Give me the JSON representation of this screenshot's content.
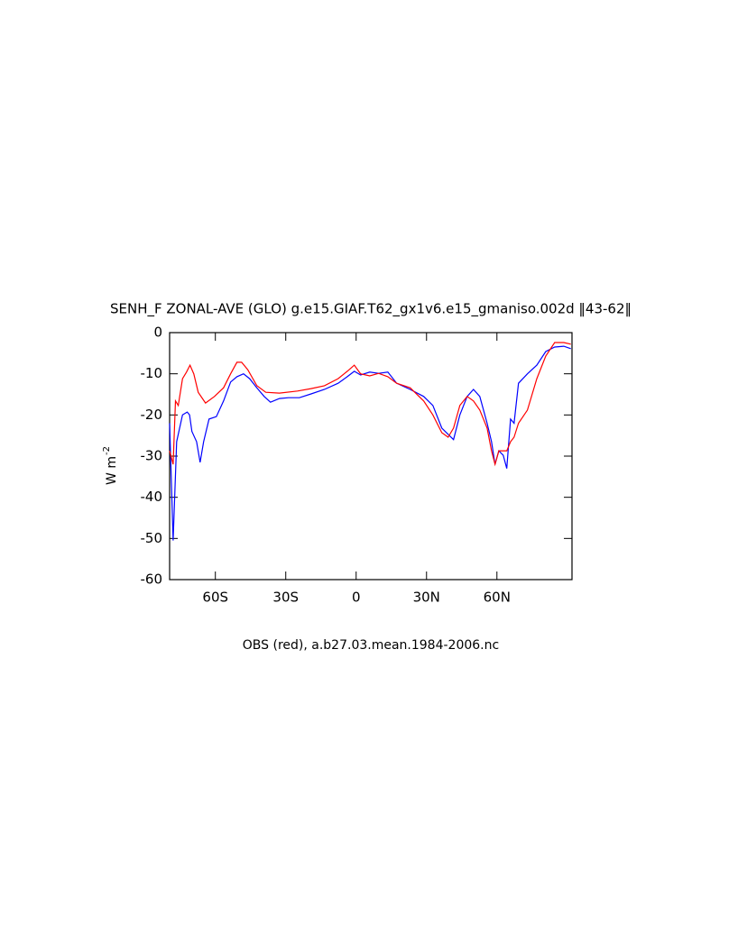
{
  "chart_data": {
    "type": "line",
    "title": "SENH_F ZONAL-AVE (GLO) g.e15.GIAF.T62_gx1v6.e15_gmaniso.002d ‖43-62‖",
    "xlabel": "OBS (red), a.b27.03.mean.1984-2006.nc",
    "ylabel": "W m",
    "ylabel_superscript": "-2",
    "xlim": [
      -79.5,
      92
    ],
    "ylim": [
      -60,
      0
    ],
    "xticks": [
      {
        "value": -60,
        "label": "60S"
      },
      {
        "value": -30,
        "label": "30S"
      },
      0,
      {
        "value": 30,
        "label": "30N"
      },
      {
        "value": 60,
        "label": "60N"
      }
    ],
    "yticks": [
      0,
      -10,
      -20,
      -30,
      -40,
      -50,
      -60
    ],
    "series": [
      {
        "color": "#0000ff",
        "x": [
          -79.5,
          -78,
          -76.5,
          -74,
          -72,
          -71,
          -70,
          -68,
          -66.5,
          -65,
          -62.7,
          -59.6,
          -56.5,
          -53.5,
          -50.8,
          -48,
          -45.4,
          -42.3,
          -39.2,
          -36.5,
          -32.7,
          -28.8,
          -24.2,
          -19.2,
          -13.5,
          -7.7,
          -3.8,
          -0.8,
          1.9,
          5.8,
          9.6,
          13.5,
          17.3,
          23,
          28.8,
          32.7,
          36.5,
          39.2,
          41.5,
          44.2,
          47.3,
          50,
          52.7,
          55.8,
          57.7,
          59.2,
          60.8,
          62.7,
          64.2,
          65.8,
          67.3,
          69.2,
          73,
          77,
          80.8,
          84.6,
          88.5,
          91.5
        ],
        "values": [
          -22,
          -50.5,
          -26.5,
          -20,
          -19.3,
          -20,
          -24,
          -26.5,
          -31.5,
          -26.5,
          -21,
          -20.4,
          -16.6,
          -12,
          -10.7,
          -10,
          -11.2,
          -13.4,
          -15.5,
          -16.9,
          -16,
          -15.8,
          -15.8,
          -14.9,
          -13.8,
          -12.3,
          -10.7,
          -9.4,
          -10.3,
          -9.6,
          -9.9,
          -9.6,
          -12.3,
          -13.8,
          -15.5,
          -17.7,
          -23.2,
          -24.7,
          -26,
          -20,
          -15.5,
          -13.8,
          -15.5,
          -22,
          -26.5,
          -32,
          -28.7,
          -29.8,
          -33,
          -21,
          -22,
          -12.3,
          -10,
          -7.9,
          -4.6,
          -3.5,
          -3.3,
          -3.9
        ]
      },
      {
        "color": "#ff0000",
        "x": [
          -79.5,
          -78,
          -77,
          -75.8,
          -74,
          -72.3,
          -70.8,
          -69.2,
          -67.3,
          -64.2,
          -60.4,
          -56.5,
          -53.5,
          -50.8,
          -48.8,
          -46.2,
          -42.3,
          -38.5,
          -32.7,
          -25,
          -19.2,
          -13.5,
          -7.7,
          -3.8,
          -0.8,
          1.9,
          5.8,
          9.6,
          13.5,
          17.3,
          23,
          28.8,
          32.7,
          36.5,
          39.2,
          41.5,
          44.2,
          47.3,
          50,
          52.7,
          55.8,
          57.7,
          59.2,
          60.8,
          62.7,
          64.2,
          65.8,
          67.3,
          69.2,
          73,
          77,
          80.8,
          84.6,
          88.5,
          91.5
        ],
        "values": [
          -28.7,
          -32,
          -16.6,
          -17.7,
          -11.2,
          -9.6,
          -7.9,
          -10,
          -14.5,
          -17.1,
          -15.5,
          -13.4,
          -10,
          -7.2,
          -7.2,
          -9,
          -12.9,
          -14.5,
          -14.7,
          -14.2,
          -13.6,
          -12.9,
          -11.2,
          -9.4,
          -7.9,
          -10,
          -10.5,
          -9.9,
          -10.7,
          -12.3,
          -13.4,
          -16.6,
          -20,
          -24.3,
          -25.4,
          -23.2,
          -17.7,
          -15.5,
          -16.6,
          -18.8,
          -23.2,
          -28.7,
          -32,
          -28.7,
          -28.7,
          -28.7,
          -26.5,
          -25.4,
          -22,
          -18.8,
          -11.2,
          -5.7,
          -2.4,
          -2.4,
          -2.8
        ]
      }
    ]
  }
}
